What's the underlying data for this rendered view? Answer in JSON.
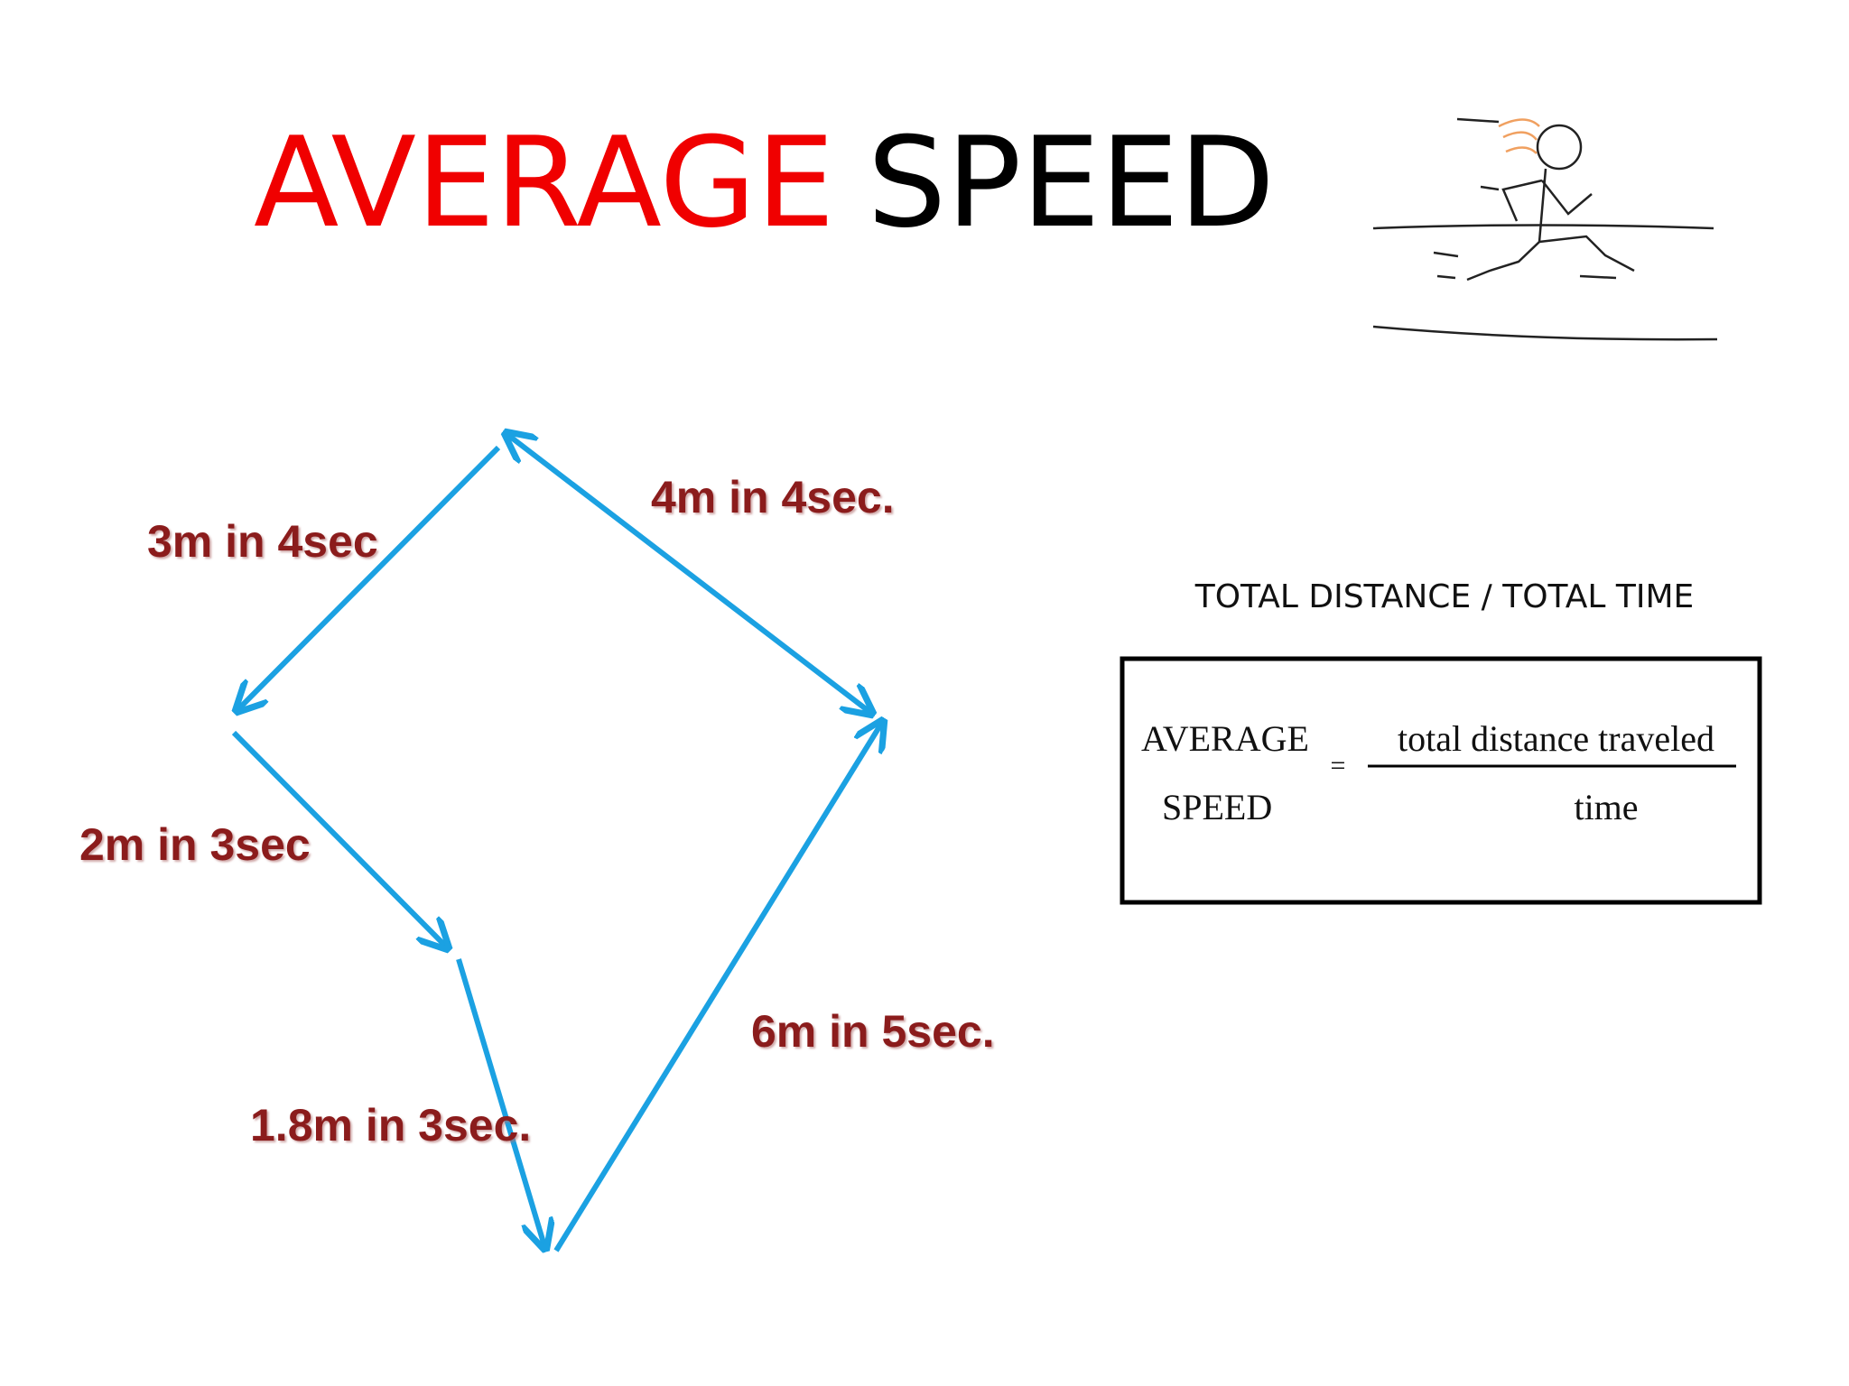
{
  "title": {
    "part1": "AVERAGE",
    "part2": "SPEED"
  },
  "path_labels": [
    "3m in 4sec",
    "4m in 4sec.",
    "2m in 3sec",
    "1.8m in 3sec.",
    "6m in 5sec."
  ],
  "formula": {
    "heading": "TOTAL DISTANCE / TOTAL TIME",
    "left_line1": "AVERAGE",
    "left_line2": "SPEED",
    "equals": "=",
    "numerator": "total distance traveled",
    "denominator": "time"
  }
}
